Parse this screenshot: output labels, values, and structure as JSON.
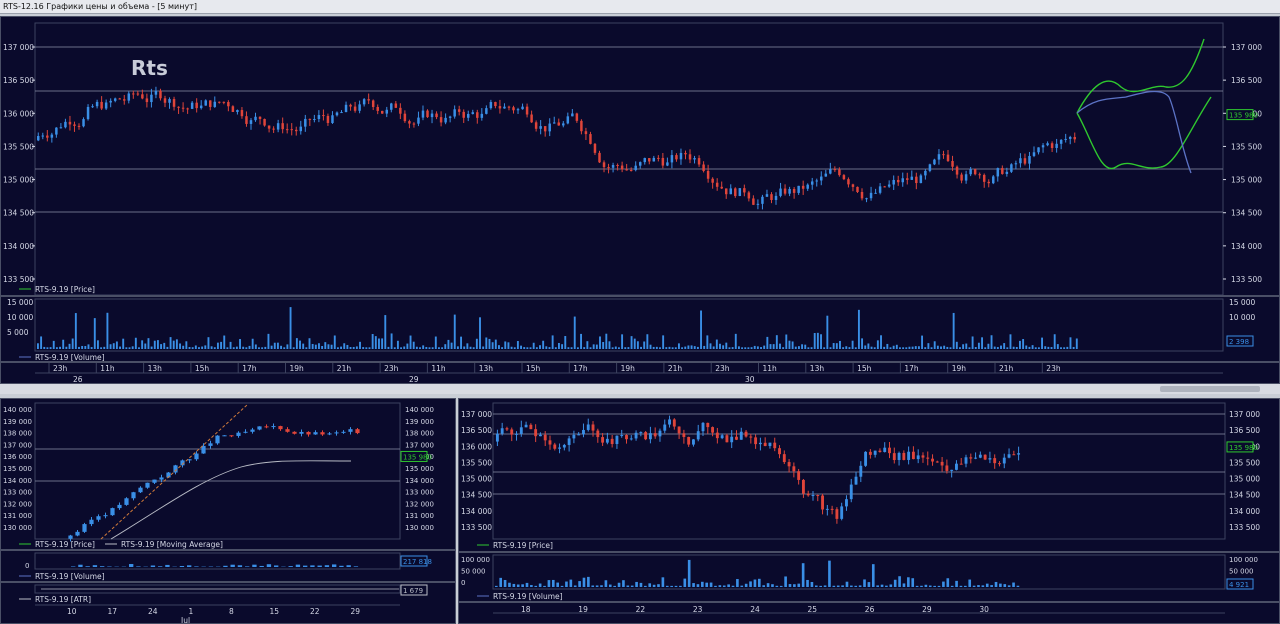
{
  "window": {
    "title": "RTS-12.16 Графики цены и объема - [5 минут]"
  },
  "colors": {
    "bg": "#0a0a2c",
    "up": "#3a8fe6",
    "down": "#e0453a",
    "grid": "#8a8fa6",
    "green": "#2fc82f",
    "blue": "#5c73c6",
    "axis": "#d5d8e6",
    "highlight": "#2fc82f"
  },
  "main": {
    "watermark": "Rts",
    "price_ticks": [
      "137 000",
      "136 500",
      "136 000",
      "135 500",
      "135 000",
      "134 500",
      "134 000",
      "133 500"
    ],
    "current_price": "135 980",
    "legend_price": "RTS-9.19 [Price]",
    "volume_ticks": [
      "15 000",
      "10 000",
      "5 000"
    ],
    "volume_right_ticks": [
      "15 000",
      "10 000",
      "5 000"
    ],
    "current_volume": "2 398",
    "legend_volume": "RTS-9.19 [Volume]",
    "time_labels": [
      "23h",
      "11h",
      "13h",
      "15h",
      "17h",
      "19h",
      "21h",
      "23h",
      "11h",
      "13h",
      "15h",
      "17h",
      "19h",
      "21h",
      "23h",
      "11h",
      "13h",
      "15h",
      "17h",
      "19h",
      "21h",
      "23h"
    ],
    "date_labels": [
      "26",
      "29",
      "30"
    ]
  },
  "bottom_left": {
    "price_ticks": [
      "140 000",
      "139 000",
      "138 000",
      "137 000",
      "136 000",
      "135 000",
      "134 000",
      "133 000",
      "132 000",
      "131 000",
      "130 000"
    ],
    "right_ticks": [
      "140 000",
      "139 000",
      "138 000",
      "137 000",
      "136 000",
      "135 000",
      "134 000",
      "133 000",
      "132 000",
      "131 000",
      "130 000"
    ],
    "current_price": "135 980",
    "legend_price": "RTS-9.19 [Price]",
    "legend_ma": "RTS-9.19 [Moving Average]",
    "volume_tick": "0",
    "current_volume": "217 818",
    "legend_volume": "RTS-9.19 [Volume]",
    "atr_value": "1 679",
    "legend_atr": "RTS-9.19 [ATR]",
    "time_labels": [
      "10",
      "17",
      "24",
      "1",
      "8",
      "15",
      "22",
      "29"
    ],
    "month_label": "Jul"
  },
  "bottom_right": {
    "price_ticks": [
      "137 000",
      "136 500",
      "136 000",
      "135 500",
      "135 000",
      "134 500",
      "134 000",
      "133 500"
    ],
    "current_price": "135 980",
    "legend_price": "RTS-9.19 [Price]",
    "volume_ticks": [
      "100 000",
      "50 000",
      "0"
    ],
    "current_volume": "4 921",
    "legend_volume": "RTS-9.19 [Volume]",
    "time_labels": [
      "18",
      "19",
      "22",
      "23",
      "24",
      "25",
      "26",
      "29",
      "30"
    ]
  }
}
